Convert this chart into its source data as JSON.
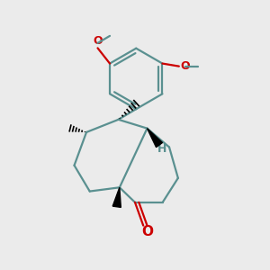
{
  "background_color": "#ebebeb",
  "bond_color": "#5a9090",
  "bond_width": 1.6,
  "wedge_color": "#000000",
  "o_color": "#cc0000",
  "h_color": "#5a9090",
  "figsize": [
    3.0,
    3.0
  ],
  "dpi": 100,
  "xlim": [
    -1.6,
    1.8
  ],
  "ylim": [
    -2.0,
    2.8
  ]
}
